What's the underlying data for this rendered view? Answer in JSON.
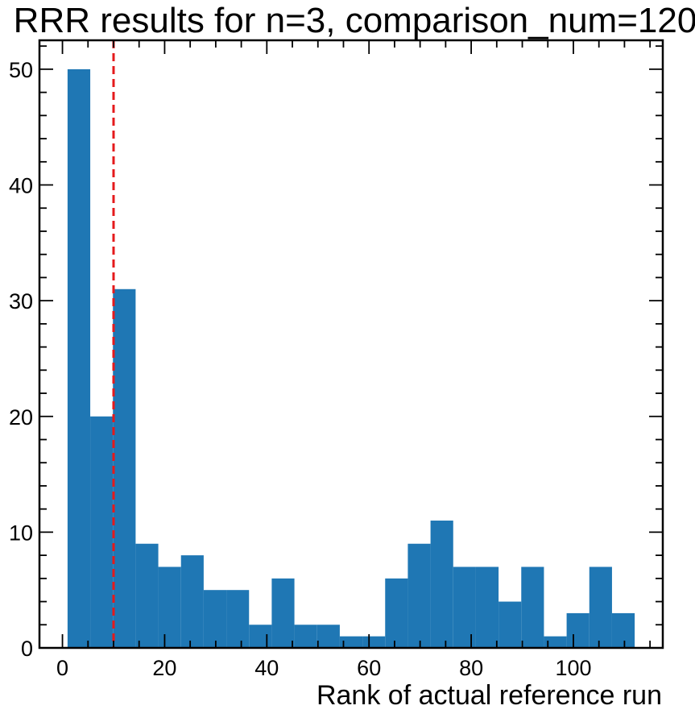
{
  "chart_data": {
    "type": "bar",
    "title": "RRR results for n=3, comparison_num=120",
    "xlabel": "Rank of actual reference run",
    "ylabel": "",
    "bin_edges": [
      1.0,
      5.44,
      9.88,
      14.32,
      18.76,
      23.2,
      27.64,
      32.08,
      36.52,
      40.96,
      45.4,
      49.84,
      54.28,
      58.72,
      63.16,
      67.6,
      72.04,
      76.48,
      80.92,
      85.36,
      89.8,
      94.24,
      98.68,
      103.12,
      107.56,
      112.0
    ],
    "values": [
      50,
      20,
      31,
      9,
      7,
      8,
      5,
      5,
      2,
      6,
      2,
      2,
      1,
      1,
      6,
      9,
      11,
      7,
      7,
      4,
      7,
      1,
      3,
      7,
      3
    ],
    "bar_color": "#1f77b4",
    "reference_line": {
      "x": 10,
      "color": "#e41a1c",
      "style": "dashed"
    },
    "xlim": [
      -4.5,
      117.5
    ],
    "ylim": [
      0,
      52.5
    ],
    "x_ticks": [
      0,
      20,
      40,
      60,
      80,
      100
    ],
    "y_ticks": [
      0,
      10,
      20,
      30,
      40,
      50
    ],
    "x_tick_labels": [
      "0",
      "20",
      "40",
      "60",
      "80",
      "100"
    ],
    "y_tick_labels": [
      "0",
      "10",
      "20",
      "30",
      "40",
      "50"
    ],
    "grid": false
  }
}
